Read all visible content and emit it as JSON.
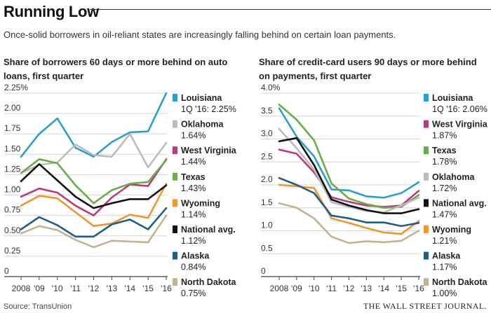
{
  "header": {
    "title": "Running Low",
    "subtitle": "Once-solid borrowers in oil-reliant states are increasingly falling behind on certain loan payments."
  },
  "footer": {
    "source": "Source: TransUnion",
    "publisher": "THE WALL STREET JOURNAL."
  },
  "chart_data": [
    {
      "type": "line",
      "title": "Share of borrowers 60 days or more behind on auto loans, first quarter",
      "x": [
        2008,
        2009,
        2010,
        2011,
        2012,
        2013,
        2014,
        2015,
        2016
      ],
      "x_tick_labels": [
        "2008",
        "'09",
        "'10",
        "'11",
        "'12",
        "'13",
        "'14",
        "'15",
        "'16"
      ],
      "y_tick_labels": [
        "2.25%",
        "2.00",
        "1.75",
        "1.50",
        "1.25",
        "1.00",
        "0.75",
        "0.50",
        "0.25",
        "0"
      ],
      "y_ticks": [
        2.25,
        2.0,
        1.75,
        1.5,
        1.25,
        1.0,
        0.75,
        0.5,
        0.25,
        0
      ],
      "ylim": [
        0,
        2.25
      ],
      "grid": true,
      "legend_position": "right",
      "series": [
        {
          "name": "Louisiana",
          "value_label": "1Q '16: 2.25%",
          "color": "#2b9fcc",
          "values": [
            1.47,
            1.75,
            1.94,
            1.58,
            1.47,
            1.65,
            1.77,
            1.78,
            2.25
          ]
        },
        {
          "name": "Oklahoma",
          "value_label": "1.64%",
          "color": "#bbbbbb",
          "values": [
            1.27,
            1.37,
            1.4,
            1.62,
            1.49,
            1.47,
            1.75,
            1.34,
            1.64
          ]
        },
        {
          "name": "West Virginia",
          "value_label": "1.44%",
          "color": "#b83b7e",
          "values": [
            0.98,
            1.08,
            1.03,
            0.87,
            0.75,
            0.97,
            1.13,
            1.11,
            1.44
          ]
        },
        {
          "name": "Texas",
          "value_label": "1.43%",
          "color": "#6aac46",
          "values": [
            1.27,
            1.44,
            1.39,
            1.12,
            0.9,
            1.06,
            1.14,
            1.16,
            1.43
          ]
        },
        {
          "name": "Wyoming",
          "value_label": "1.14%",
          "color": "#f0962e",
          "values": [
            0.87,
            0.99,
            0.96,
            0.79,
            0.62,
            0.65,
            0.76,
            0.72,
            1.14
          ]
        },
        {
          "name": "National avg.",
          "value_label": "1.12%",
          "color": "#111111",
          "values": [
            1.17,
            1.38,
            1.18,
            0.98,
            0.84,
            0.9,
            0.95,
            0.95,
            1.12
          ]
        },
        {
          "name": "Alaska",
          "value_label": "0.84%",
          "color": "#1f5f86",
          "values": [
            0.58,
            0.73,
            0.63,
            0.49,
            0.49,
            0.64,
            0.7,
            0.58,
            0.84
          ]
        },
        {
          "name": "North Dakota",
          "value_label": "0.75%",
          "color": "#c3b38c",
          "values": [
            0.53,
            0.62,
            0.57,
            0.45,
            0.36,
            0.44,
            0.43,
            0.42,
            0.75
          ]
        }
      ]
    },
    {
      "type": "line",
      "title": "Share of credit-card users 90 days or more behind on payments, first quarter",
      "x": [
        2008,
        2009,
        2010,
        2011,
        2012,
        2013,
        2014,
        2015,
        2016
      ],
      "x_tick_labels": [
        "2008",
        "'09",
        "'10",
        "'11",
        "'12",
        "'13",
        "'14",
        "'15",
        "'16"
      ],
      "y_tick_labels": [
        "4.0%",
        "3.5",
        "3.0",
        "2.5",
        "2.0",
        "1.5",
        "1.0",
        "0.5",
        "0"
      ],
      "y_ticks": [
        4.0,
        3.5,
        3.0,
        2.5,
        2.0,
        1.5,
        1.0,
        0.5,
        0
      ],
      "ylim": [
        0,
        4.0
      ],
      "grid": true,
      "legend_position": "right",
      "series": [
        {
          "name": "Louisiana",
          "value_label": "1Q '16: 2.06%",
          "color": "#2b9fcc",
          "values": [
            3.67,
            3.05,
            2.62,
            1.9,
            1.88,
            1.75,
            1.72,
            1.82,
            2.06
          ]
        },
        {
          "name": "West Virginia",
          "value_label": "1.87%",
          "color": "#b83b7e",
          "values": [
            2.77,
            2.68,
            2.27,
            1.73,
            1.63,
            1.55,
            1.52,
            1.55,
            1.87
          ]
        },
        {
          "name": "Texas",
          "value_label": "1.78%",
          "color": "#6aac46",
          "values": [
            3.75,
            3.42,
            2.97,
            2.03,
            1.7,
            1.58,
            1.5,
            1.52,
            1.78
          ]
        },
        {
          "name": "Oklahoma",
          "value_label": "1.72%",
          "color": "#bbbbbb",
          "values": [
            3.22,
            2.8,
            2.33,
            1.62,
            1.52,
            1.43,
            1.4,
            1.55,
            1.72
          ]
        },
        {
          "name": "National avg.",
          "value_label": "1.47%",
          "color": "#111111",
          "values": [
            2.95,
            3.02,
            2.43,
            1.68,
            1.55,
            1.45,
            1.38,
            1.38,
            1.47
          ]
        },
        {
          "name": "Wyoming",
          "value_label": "1.21%",
          "color": "#f0962e",
          "values": [
            2.0,
            1.97,
            1.93,
            1.27,
            1.17,
            1.06,
            0.96,
            0.93,
            1.21
          ]
        },
        {
          "name": "Alaska",
          "value_label": "1.17%",
          "color": "#1f5f86",
          "values": [
            2.15,
            2.0,
            1.82,
            1.33,
            1.27,
            1.18,
            1.18,
            1.1,
            1.17
          ]
        },
        {
          "name": "North Dakota",
          "value_label": "1.00%",
          "color": "#c3b38c",
          "values": [
            1.6,
            1.5,
            1.27,
            0.87,
            0.73,
            0.77,
            0.75,
            0.78,
            1.0
          ]
        }
      ]
    }
  ]
}
